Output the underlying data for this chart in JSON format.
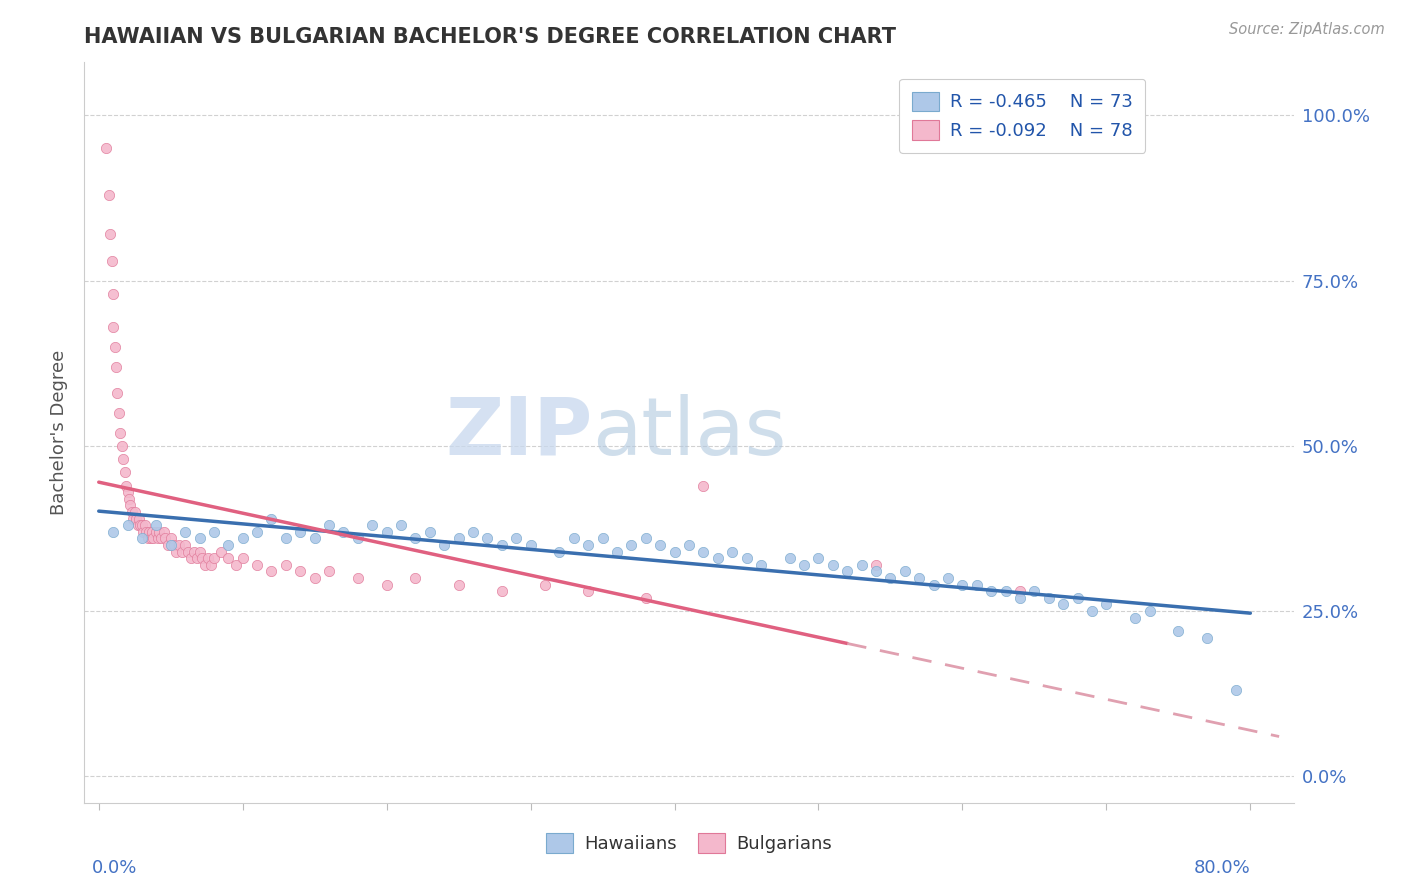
{
  "title": "HAWAIIAN VS BULGARIAN BACHELOR'S DEGREE CORRELATION CHART",
  "source": "Source: ZipAtlas.com",
  "watermark_zip": "ZIP",
  "watermark_atlas": "atlas",
  "ylabel": "Bachelor's Degree",
  "right_yticklabels": [
    "0.0%",
    "25.0%",
    "50.0%",
    "75.0%",
    "100.0%"
  ],
  "right_ytick_vals": [
    0.0,
    0.25,
    0.5,
    0.75,
    1.0
  ],
  "xmin": 0.0,
  "xmax": 0.8,
  "ymin": -0.04,
  "ymax": 1.08,
  "blue_color": "#aec8e8",
  "pink_color": "#f4b8cc",
  "blue_edge": "#7aaace",
  "pink_edge": "#e07898",
  "blue_line_color": "#3a6faf",
  "pink_line_solid_color": "#e06080",
  "pink_line_dash_color": "#e0a0b0",
  "title_color": "#333333",
  "axis_label_color": "#4472c4",
  "legend_label_color": "#2255aa",
  "watermark_zip_color": "#c8d8ee",
  "watermark_atlas_color": "#b0c8e8",
  "hawaiians_x": [
    0.01,
    0.02,
    0.03,
    0.04,
    0.05,
    0.06,
    0.07,
    0.08,
    0.09,
    0.1,
    0.11,
    0.12,
    0.13,
    0.14,
    0.15,
    0.16,
    0.17,
    0.18,
    0.19,
    0.2,
    0.21,
    0.22,
    0.23,
    0.24,
    0.25,
    0.26,
    0.27,
    0.28,
    0.29,
    0.3,
    0.32,
    0.33,
    0.34,
    0.35,
    0.36,
    0.37,
    0.38,
    0.39,
    0.4,
    0.41,
    0.42,
    0.43,
    0.44,
    0.45,
    0.46,
    0.48,
    0.49,
    0.5,
    0.51,
    0.52,
    0.53,
    0.54,
    0.55,
    0.56,
    0.57,
    0.58,
    0.59,
    0.6,
    0.61,
    0.62,
    0.63,
    0.64,
    0.65,
    0.66,
    0.67,
    0.68,
    0.69,
    0.7,
    0.72,
    0.73,
    0.75,
    0.77,
    0.79
  ],
  "hawaiians_y": [
    0.37,
    0.38,
    0.36,
    0.38,
    0.35,
    0.37,
    0.36,
    0.37,
    0.35,
    0.36,
    0.37,
    0.39,
    0.36,
    0.37,
    0.36,
    0.38,
    0.37,
    0.36,
    0.38,
    0.37,
    0.38,
    0.36,
    0.37,
    0.35,
    0.36,
    0.37,
    0.36,
    0.35,
    0.36,
    0.35,
    0.34,
    0.36,
    0.35,
    0.36,
    0.34,
    0.35,
    0.36,
    0.35,
    0.34,
    0.35,
    0.34,
    0.33,
    0.34,
    0.33,
    0.32,
    0.33,
    0.32,
    0.33,
    0.32,
    0.31,
    0.32,
    0.31,
    0.3,
    0.31,
    0.3,
    0.29,
    0.3,
    0.29,
    0.29,
    0.28,
    0.28,
    0.27,
    0.28,
    0.27,
    0.26,
    0.27,
    0.25,
    0.26,
    0.24,
    0.25,
    0.22,
    0.21,
    0.13
  ],
  "bulgarians_x": [
    0.005,
    0.007,
    0.008,
    0.009,
    0.01,
    0.01,
    0.011,
    0.012,
    0.013,
    0.014,
    0.015,
    0.016,
    0.017,
    0.018,
    0.019,
    0.02,
    0.021,
    0.022,
    0.023,
    0.024,
    0.025,
    0.026,
    0.027,
    0.028,
    0.029,
    0.03,
    0.031,
    0.032,
    0.033,
    0.034,
    0.035,
    0.036,
    0.037,
    0.038,
    0.04,
    0.041,
    0.042,
    0.043,
    0.045,
    0.046,
    0.048,
    0.05,
    0.052,
    0.054,
    0.056,
    0.058,
    0.06,
    0.062,
    0.064,
    0.066,
    0.068,
    0.07,
    0.072,
    0.074,
    0.076,
    0.078,
    0.08,
    0.085,
    0.09,
    0.095,
    0.1,
    0.11,
    0.12,
    0.13,
    0.14,
    0.15,
    0.16,
    0.18,
    0.2,
    0.22,
    0.25,
    0.28,
    0.31,
    0.34,
    0.38,
    0.42,
    0.54,
    0.64
  ],
  "bulgarians_y": [
    0.95,
    0.88,
    0.82,
    0.78,
    0.73,
    0.68,
    0.65,
    0.62,
    0.58,
    0.55,
    0.52,
    0.5,
    0.48,
    0.46,
    0.44,
    0.43,
    0.42,
    0.41,
    0.4,
    0.39,
    0.4,
    0.39,
    0.38,
    0.39,
    0.38,
    0.38,
    0.37,
    0.38,
    0.37,
    0.36,
    0.37,
    0.36,
    0.37,
    0.36,
    0.37,
    0.36,
    0.37,
    0.36,
    0.37,
    0.36,
    0.35,
    0.36,
    0.35,
    0.34,
    0.35,
    0.34,
    0.35,
    0.34,
    0.33,
    0.34,
    0.33,
    0.34,
    0.33,
    0.32,
    0.33,
    0.32,
    0.33,
    0.34,
    0.33,
    0.32,
    0.33,
    0.32,
    0.31,
    0.32,
    0.31,
    0.3,
    0.31,
    0.3,
    0.29,
    0.3,
    0.29,
    0.28,
    0.29,
    0.28,
    0.27,
    0.44,
    0.32,
    0.28
  ]
}
